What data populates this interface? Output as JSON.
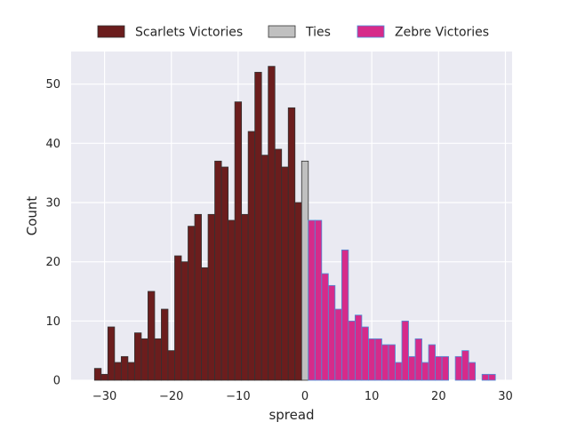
{
  "chart_data": {
    "type": "bar",
    "title": "",
    "xlabel": "spread",
    "ylabel": "Count",
    "xlim": [
      -35,
      31
    ],
    "ylim": [
      0,
      55.5
    ],
    "x_ticks": [
      -30,
      -20,
      -10,
      0,
      10,
      20,
      30
    ],
    "y_ticks": [
      0,
      10,
      20,
      30,
      40,
      50
    ],
    "x_tick_labels": [
      "−30",
      "−20",
      "−10",
      "0",
      "10",
      "20",
      "30"
    ],
    "y_tick_labels": [
      "0",
      "10",
      "20",
      "30",
      "40",
      "50"
    ],
    "grid": true,
    "legend_position": "top-center",
    "series": [
      {
        "name": "Scarlets Victories",
        "color": "#6b1d1d",
        "edge_color": "#333333",
        "x": [
          -31,
          -30,
          -29,
          -28,
          -27,
          -26,
          -25,
          -24,
          -23,
          -22,
          -21,
          -20,
          -19,
          -18,
          -17,
          -16,
          -15,
          -14,
          -13,
          -12,
          -11,
          -10,
          -9,
          -8,
          -7,
          -6,
          -5,
          -4,
          -3,
          -2,
          -1
        ],
        "values": [
          2,
          1,
          9,
          3,
          4,
          3,
          8,
          7,
          15,
          7,
          12,
          5,
          21,
          20,
          26,
          28,
          19,
          28,
          37,
          36,
          27,
          47,
          28,
          42,
          52,
          38,
          53,
          39,
          36,
          46,
          30
        ]
      },
      {
        "name": "Ties",
        "color": "#c0c0c0",
        "edge_color": "#333333",
        "x": [
          0
        ],
        "values": [
          37
        ]
      },
      {
        "name": "Zebre Victories",
        "color": "#d62b8a",
        "edge_color": "#4a90d9",
        "x": [
          1,
          2,
          3,
          4,
          5,
          6,
          7,
          8,
          9,
          10,
          11,
          12,
          13,
          14,
          15,
          16,
          17,
          18,
          19,
          20,
          21,
          22,
          23,
          24,
          25,
          26,
          27,
          28
        ],
        "values": [
          27,
          27,
          18,
          16,
          12,
          22,
          10,
          11,
          9,
          7,
          7,
          6,
          6,
          3,
          10,
          4,
          7,
          3,
          6,
          4,
          4,
          0,
          4,
          5,
          3,
          0,
          1,
          1
        ]
      }
    ]
  }
}
